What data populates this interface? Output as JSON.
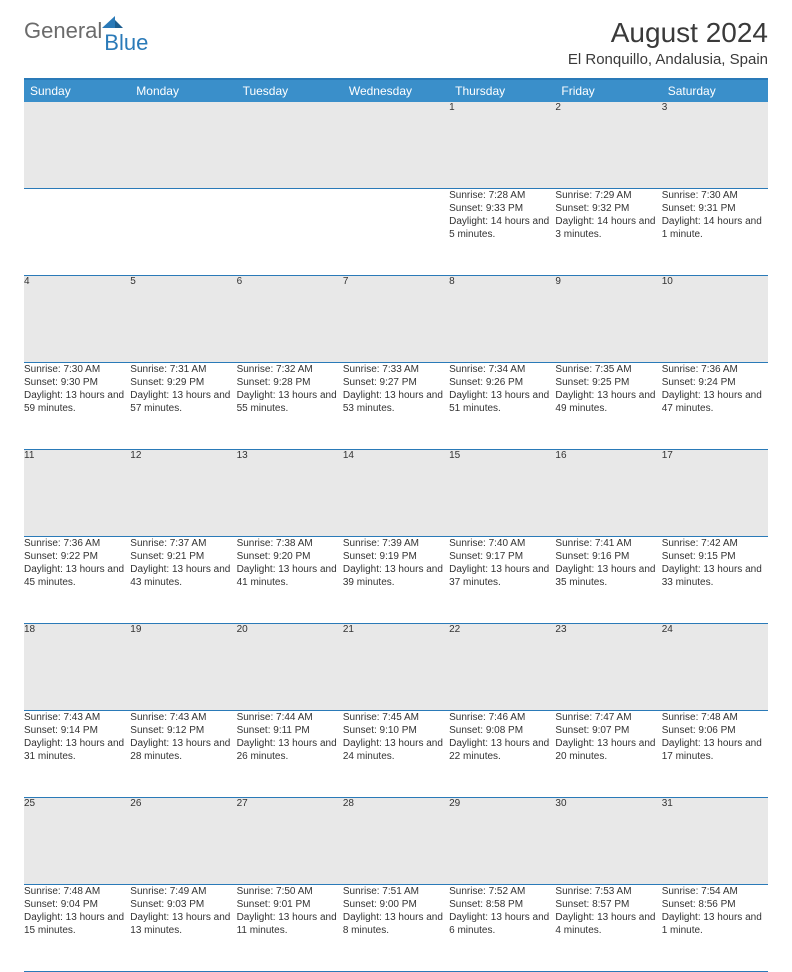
{
  "brand": {
    "part1": "General",
    "part2": "Blue"
  },
  "title": "August 2024",
  "location": "El Ronquillo, Andalusia, Spain",
  "colors": {
    "header_bg": "#3a8fca",
    "border": "#2a7ab8",
    "daynum_bg": "#e8e8e8",
    "text": "#333333",
    "title_text": "#3a3a3a",
    "logo_gray": "#6b6b6b",
    "logo_blue": "#2a7ab8"
  },
  "weekdays": [
    "Sunday",
    "Monday",
    "Tuesday",
    "Wednesday",
    "Thursday",
    "Friday",
    "Saturday"
  ],
  "weeks": [
    [
      null,
      null,
      null,
      null,
      {
        "d": "1",
        "r": "7:28 AM",
        "s": "9:33 PM",
        "dl": "14 hours and 5 minutes."
      },
      {
        "d": "2",
        "r": "7:29 AM",
        "s": "9:32 PM",
        "dl": "14 hours and 3 minutes."
      },
      {
        "d": "3",
        "r": "7:30 AM",
        "s": "9:31 PM",
        "dl": "14 hours and 1 minute."
      }
    ],
    [
      {
        "d": "4",
        "r": "7:30 AM",
        "s": "9:30 PM",
        "dl": "13 hours and 59 minutes."
      },
      {
        "d": "5",
        "r": "7:31 AM",
        "s": "9:29 PM",
        "dl": "13 hours and 57 minutes."
      },
      {
        "d": "6",
        "r": "7:32 AM",
        "s": "9:28 PM",
        "dl": "13 hours and 55 minutes."
      },
      {
        "d": "7",
        "r": "7:33 AM",
        "s": "9:27 PM",
        "dl": "13 hours and 53 minutes."
      },
      {
        "d": "8",
        "r": "7:34 AM",
        "s": "9:26 PM",
        "dl": "13 hours and 51 minutes."
      },
      {
        "d": "9",
        "r": "7:35 AM",
        "s": "9:25 PM",
        "dl": "13 hours and 49 minutes."
      },
      {
        "d": "10",
        "r": "7:36 AM",
        "s": "9:24 PM",
        "dl": "13 hours and 47 minutes."
      }
    ],
    [
      {
        "d": "11",
        "r": "7:36 AM",
        "s": "9:22 PM",
        "dl": "13 hours and 45 minutes."
      },
      {
        "d": "12",
        "r": "7:37 AM",
        "s": "9:21 PM",
        "dl": "13 hours and 43 minutes."
      },
      {
        "d": "13",
        "r": "7:38 AM",
        "s": "9:20 PM",
        "dl": "13 hours and 41 minutes."
      },
      {
        "d": "14",
        "r": "7:39 AM",
        "s": "9:19 PM",
        "dl": "13 hours and 39 minutes."
      },
      {
        "d": "15",
        "r": "7:40 AM",
        "s": "9:17 PM",
        "dl": "13 hours and 37 minutes."
      },
      {
        "d": "16",
        "r": "7:41 AM",
        "s": "9:16 PM",
        "dl": "13 hours and 35 minutes."
      },
      {
        "d": "17",
        "r": "7:42 AM",
        "s": "9:15 PM",
        "dl": "13 hours and 33 minutes."
      }
    ],
    [
      {
        "d": "18",
        "r": "7:43 AM",
        "s": "9:14 PM",
        "dl": "13 hours and 31 minutes."
      },
      {
        "d": "19",
        "r": "7:43 AM",
        "s": "9:12 PM",
        "dl": "13 hours and 28 minutes."
      },
      {
        "d": "20",
        "r": "7:44 AM",
        "s": "9:11 PM",
        "dl": "13 hours and 26 minutes."
      },
      {
        "d": "21",
        "r": "7:45 AM",
        "s": "9:10 PM",
        "dl": "13 hours and 24 minutes."
      },
      {
        "d": "22",
        "r": "7:46 AM",
        "s": "9:08 PM",
        "dl": "13 hours and 22 minutes."
      },
      {
        "d": "23",
        "r": "7:47 AM",
        "s": "9:07 PM",
        "dl": "13 hours and 20 minutes."
      },
      {
        "d": "24",
        "r": "7:48 AM",
        "s": "9:06 PM",
        "dl": "13 hours and 17 minutes."
      }
    ],
    [
      {
        "d": "25",
        "r": "7:48 AM",
        "s": "9:04 PM",
        "dl": "13 hours and 15 minutes."
      },
      {
        "d": "26",
        "r": "7:49 AM",
        "s": "9:03 PM",
        "dl": "13 hours and 13 minutes."
      },
      {
        "d": "27",
        "r": "7:50 AM",
        "s": "9:01 PM",
        "dl": "13 hours and 11 minutes."
      },
      {
        "d": "28",
        "r": "7:51 AM",
        "s": "9:00 PM",
        "dl": "13 hours and 8 minutes."
      },
      {
        "d": "29",
        "r": "7:52 AM",
        "s": "8:58 PM",
        "dl": "13 hours and 6 minutes."
      },
      {
        "d": "30",
        "r": "7:53 AM",
        "s": "8:57 PM",
        "dl": "13 hours and 4 minutes."
      },
      {
        "d": "31",
        "r": "7:54 AM",
        "s": "8:56 PM",
        "dl": "13 hours and 1 minute."
      }
    ]
  ],
  "labels": {
    "sunrise": "Sunrise:",
    "sunset": "Sunset:",
    "daylight": "Daylight:"
  }
}
